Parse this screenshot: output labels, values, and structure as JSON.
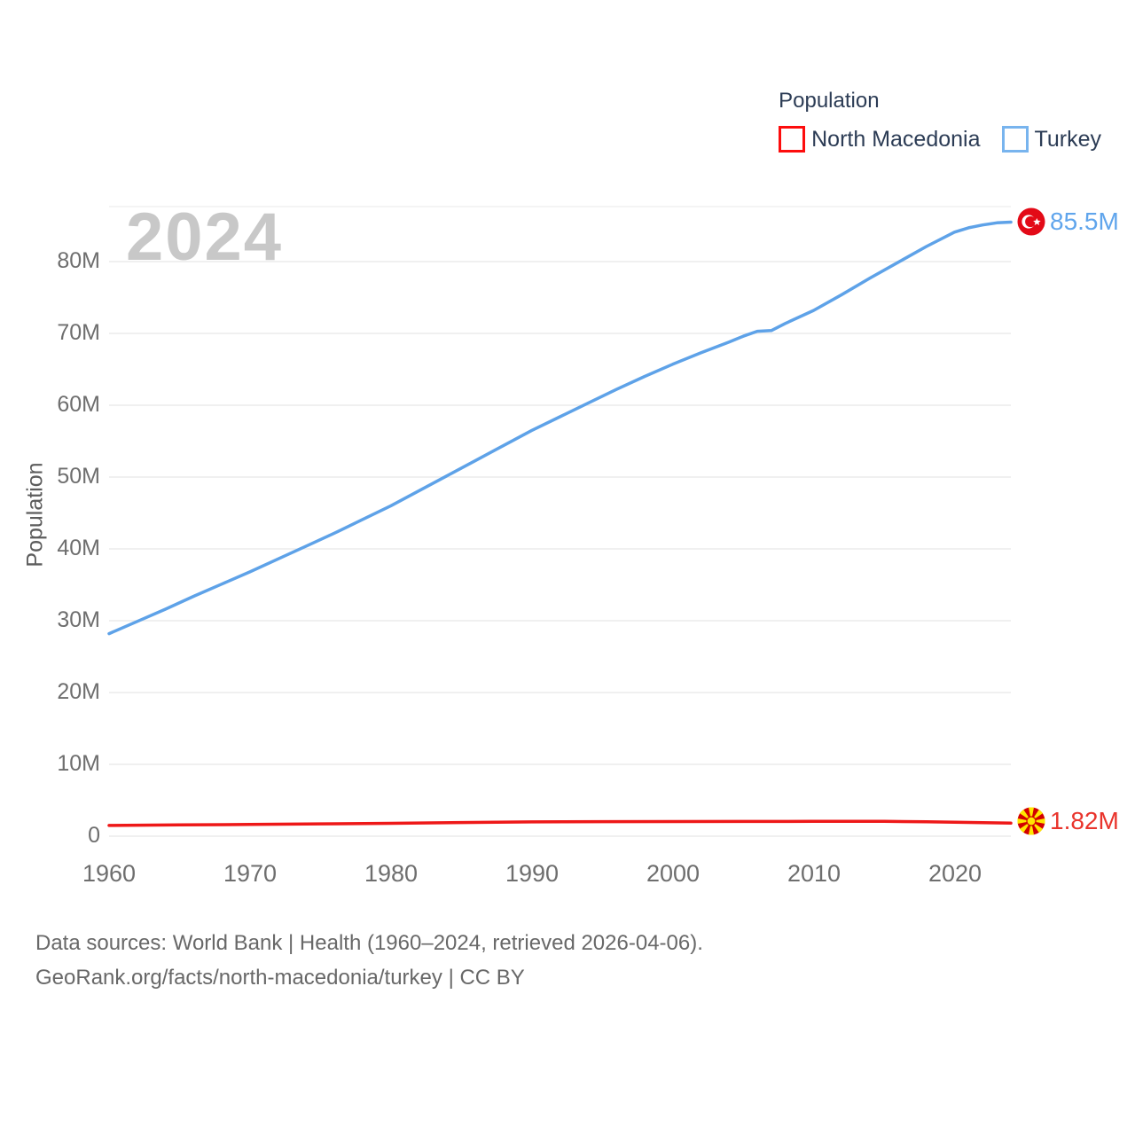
{
  "legend": {
    "title": "Population",
    "items": [
      {
        "label": "North Macedonia",
        "color": "#fd0d0d"
      },
      {
        "label": "Turkey",
        "color": "#78b4ee"
      }
    ]
  },
  "watermark_year": "2024",
  "chart_data": {
    "type": "line",
    "title": "Population",
    "ylabel": "Population",
    "xlabel": "",
    "xlim": [
      1960,
      2024
    ],
    "ylim": [
      0,
      86
    ],
    "grid": "horizontal",
    "legend_position": "top-right",
    "y_ticks": [
      0,
      10,
      20,
      30,
      40,
      50,
      60,
      70,
      80
    ],
    "y_tick_labels": [
      "0",
      "10M",
      "20M",
      "30M",
      "40M",
      "50M",
      "60M",
      "70M",
      "80M"
    ],
    "x_tick_labels": [
      "1960",
      "1970",
      "1980",
      "1990",
      "2000",
      "2010",
      "2020"
    ],
    "series": [
      {
        "name": "North Macedonia",
        "color": "#ee1818",
        "end_label": "1.82M",
        "end_value_millions": 1.82,
        "flag": "north-macedonia",
        "x": [
          1960,
          1965,
          1970,
          1975,
          1980,
          1985,
          1990,
          1995,
          2000,
          2005,
          2010,
          2015,
          2018,
          2020,
          2022,
          2024
        ],
        "values": [
          1.49,
          1.57,
          1.63,
          1.72,
          1.79,
          1.9,
          1.99,
          2.02,
          2.04,
          2.05,
          2.06,
          2.08,
          2.0,
          1.94,
          1.88,
          1.82
        ]
      },
      {
        "name": "Turkey",
        "color": "#5ea2e8",
        "end_label": "85.5M",
        "end_value_millions": 85.5,
        "flag": "turkey",
        "x": [
          1960,
          1962,
          1964,
          1966,
          1968,
          1970,
          1972,
          1974,
          1976,
          1978,
          1980,
          1982,
          1984,
          1986,
          1988,
          1990,
          1992,
          1994,
          1996,
          1998,
          2000,
          2002,
          2004,
          2005,
          2006,
          2007,
          2008,
          2010,
          2012,
          2014,
          2016,
          2018,
          2020,
          2021,
          2022,
          2023,
          2024
        ],
        "values": [
          28.2,
          29.9,
          31.6,
          33.4,
          35.1,
          36.8,
          38.6,
          40.4,
          42.2,
          44.1,
          46.0,
          48.1,
          50.2,
          52.3,
          54.4,
          56.5,
          58.4,
          60.3,
          62.2,
          64.0,
          65.7,
          67.3,
          68.8,
          69.6,
          70.3,
          70.4,
          71.4,
          73.2,
          75.4,
          77.7,
          79.9,
          82.1,
          84.1,
          84.7,
          85.1,
          85.4,
          85.5
        ]
      }
    ]
  },
  "footer": {
    "line1": "Data sources: World Bank | Health (1960–2024, retrieved 2026-04-06).",
    "line2": "GeoRank.org/facts/north-macedonia/turkey | CC BY"
  }
}
